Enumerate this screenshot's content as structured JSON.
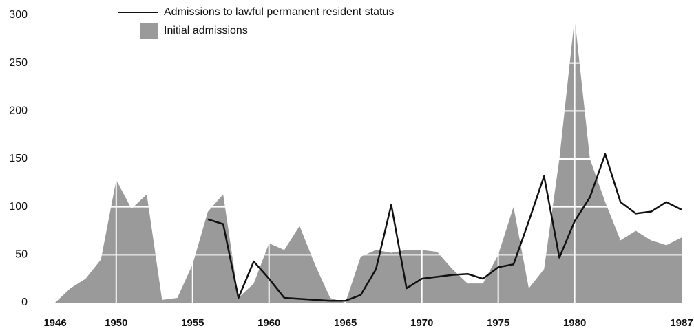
{
  "chart_data": {
    "type": "area-line",
    "x": [
      1946,
      1947,
      1948,
      1949,
      1950,
      1951,
      1952,
      1953,
      1954,
      1955,
      1956,
      1957,
      1958,
      1959,
      1960,
      1961,
      1962,
      1963,
      1964,
      1965,
      1966,
      1967,
      1968,
      1969,
      1970,
      1971,
      1972,
      1973,
      1974,
      1975,
      1976,
      1977,
      1978,
      1979,
      1980,
      1981,
      1982,
      1983,
      1984,
      1985,
      1986,
      1987
    ],
    "series": [
      {
        "name": "Admissions to lawful permanent resident status",
        "color": "#111111",
        "kind": "line",
        "values": [
          null,
          null,
          null,
          null,
          null,
          null,
          null,
          null,
          null,
          null,
          87,
          82,
          5,
          43,
          25,
          5,
          4,
          3,
          2,
          2,
          8,
          35,
          102,
          15,
          25,
          27,
          29,
          30,
          25,
          37,
          40,
          85,
          132,
          47,
          85,
          110,
          155,
          105,
          93,
          95,
          105,
          97
        ]
      },
      {
        "name": "Initial admissions",
        "color": "#9a9a9a",
        "kind": "area",
        "values": [
          0,
          15,
          25,
          45,
          128,
          98,
          113,
          3,
          5,
          40,
          95,
          113,
          5,
          20,
          62,
          55,
          80,
          40,
          5,
          0,
          48,
          55,
          52,
          55,
          55,
          53,
          35,
          20,
          20,
          50,
          100,
          15,
          35,
          150,
          297,
          150,
          105,
          65,
          75,
          65,
          60,
          68
        ]
      }
    ],
    "xlim": [
      1946,
      1987
    ],
    "xticks": [
      1946,
      1950,
      1955,
      1960,
      1965,
      1970,
      1975,
      1980,
      1987
    ],
    "ylim": [
      0,
      300
    ],
    "yticks": [
      0,
      50,
      100,
      150,
      200,
      250,
      300
    ],
    "grid": true,
    "grid_color": "#ffffff",
    "legend": "top"
  }
}
